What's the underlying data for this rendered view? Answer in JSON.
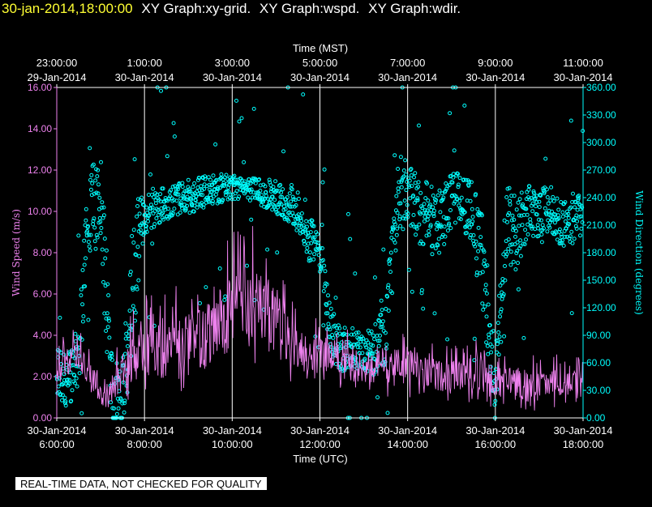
{
  "header": {
    "timestamp": "30-jan-2014,18:00:00",
    "graphs": [
      "XY Graph:xy-grid.",
      "XY Graph:wspd.",
      "XY Graph:wdir."
    ]
  },
  "footer": {
    "disclaimer": "REAL-TIME DATA, NOT CHECKED FOR QUALITY"
  },
  "colors": {
    "wspd": "#ee82ee",
    "wdir": "#00ffff",
    "axis_left": "#ee82ee",
    "axis_right": "#00ffff",
    "grid": "#ffffff",
    "header_timestamp": "#ffff33"
  },
  "chart_data": {
    "type": "line",
    "title": "",
    "top_axis": {
      "label": "Time (MST)",
      "ticks": [
        {
          "time": "23:00:00",
          "date": "29-Jan-2014"
        },
        {
          "time": "1:00:00",
          "date": "30-Jan-2014"
        },
        {
          "time": "3:00:00",
          "date": "30-Jan-2014"
        },
        {
          "time": "5:00:00",
          "date": "30-Jan-2014"
        },
        {
          "time": "7:00:00",
          "date": "30-Jan-2014"
        },
        {
          "time": "9:00:00",
          "date": "30-Jan-2014"
        },
        {
          "time": "11:00:00",
          "date": "30-Jan-2014"
        }
      ]
    },
    "bottom_axis": {
      "label": "Time (UTC)",
      "range": [
        "2014-01-30 06:00",
        "2014-01-30 18:00"
      ],
      "ticks": [
        {
          "date": "30-Jan-2014",
          "time": "6:00:00"
        },
        {
          "date": "30-Jan-2014",
          "time": "8:00:00"
        },
        {
          "date": "30-Jan-2014",
          "time": "10:00:00"
        },
        {
          "date": "30-Jan-2014",
          "time": "12:00:00"
        },
        {
          "date": "30-Jan-2014",
          "time": "14:00:00"
        },
        {
          "date": "30-Jan-2014",
          "time": "16:00:00"
        },
        {
          "date": "30-Jan-2014",
          "time": "18:00:00"
        }
      ]
    },
    "y_left": {
      "label": "Wind Speed (m/s)",
      "range": [
        0,
        16
      ],
      "ticks": [
        "0.00",
        "2.00",
        "4.00",
        "6.00",
        "8.00",
        "10.00",
        "12.00",
        "14.00",
        "16.00"
      ]
    },
    "y_right": {
      "label": "Wind Direction (degrees)",
      "range": [
        0,
        360
      ],
      "ticks": [
        "0.00",
        "30.00",
        "60.00",
        "90.00",
        "120.00",
        "150.00",
        "180.00",
        "210.00",
        "240.00",
        "270.00",
        "300.00",
        "330.00",
        "360.00"
      ]
    },
    "grid": "vertical",
    "series": [
      {
        "key": "wspd",
        "kind": "line",
        "axis": "left",
        "color": "#ee82ee",
        "x_hours_utc": [
          6.0,
          6.25,
          6.5,
          6.75,
          7.0,
          7.25,
          7.5,
          7.75,
          8.0,
          8.25,
          8.5,
          8.75,
          9.0,
          9.25,
          9.5,
          9.75,
          10.0,
          10.25,
          10.5,
          10.75,
          11.0,
          11.25,
          11.5,
          11.75,
          12.0,
          12.25,
          12.5,
          12.75,
          13.0,
          13.25,
          13.5,
          13.75,
          14.0,
          14.25,
          14.5,
          14.75,
          15.0,
          15.25,
          15.5,
          15.75,
          16.0,
          16.25,
          16.5,
          16.75,
          17.0,
          17.25,
          17.5,
          17.75,
          18.0
        ],
        "mean": [
          2.5,
          2.8,
          3.0,
          2.2,
          1.0,
          1.2,
          2.2,
          2.8,
          3.0,
          3.1,
          3.2,
          3.4,
          3.5,
          3.8,
          4.2,
          4.6,
          5.0,
          5.4,
          5.6,
          5.2,
          4.8,
          4.0,
          3.4,
          3.0,
          3.2,
          3.0,
          2.8,
          2.6,
          2.4,
          2.2,
          2.4,
          2.6,
          2.8,
          2.4,
          2.2,
          2.0,
          2.0,
          2.2,
          2.2,
          2.0,
          1.6,
          1.8,
          1.8,
          1.6,
          1.6,
          1.8,
          1.6,
          1.6,
          1.8
        ],
        "max": [
          4.0,
          4.2,
          4.4,
          3.5,
          2.2,
          2.8,
          4.2,
          5.5,
          6.0,
          6.4,
          6.8,
          6.5,
          7.0,
          7.5,
          8.2,
          8.5,
          9.0,
          9.5,
          9.3,
          8.5,
          7.5,
          6.5,
          5.5,
          4.8,
          5.0,
          4.8,
          4.4,
          4.2,
          4.0,
          3.8,
          4.0,
          4.2,
          4.5,
          4.0,
          3.8,
          3.6,
          3.5,
          3.8,
          4.0,
          3.8,
          3.0,
          3.2,
          3.6,
          3.2,
          3.0,
          3.2,
          3.0,
          2.8,
          3.2
        ],
        "min": [
          1.2,
          1.4,
          1.2,
          0.6,
          0.0,
          0.2,
          0.6,
          1.0,
          1.0,
          1.0,
          1.2,
          1.2,
          1.0,
          1.2,
          1.6,
          1.8,
          2.2,
          2.5,
          2.6,
          2.2,
          2.0,
          1.8,
          1.6,
          1.4,
          1.5,
          1.4,
          1.3,
          1.2,
          1.1,
          1.0,
          1.0,
          1.0,
          1.0,
          0.9,
          0.8,
          0.6,
          0.6,
          0.6,
          0.4,
          0.3,
          0.0,
          0.3,
          0.4,
          0.3,
          0.4,
          0.5,
          0.5,
          0.5,
          0.6
        ]
      },
      {
        "key": "wdir",
        "kind": "scatter",
        "axis": "right",
        "color": "#00ffff",
        "x_hours_utc": [
          6.0,
          6.25,
          6.5,
          6.75,
          7.0,
          7.25,
          7.5,
          7.75,
          8.0,
          8.25,
          8.5,
          8.75,
          9.0,
          9.25,
          9.5,
          9.75,
          10.0,
          10.25,
          10.5,
          10.75,
          11.0,
          11.25,
          11.5,
          11.75,
          12.0,
          12.25,
          12.5,
          12.75,
          13.0,
          13.25,
          13.5,
          13.75,
          14.0,
          14.25,
          14.5,
          14.75,
          15.0,
          15.25,
          15.5,
          15.75,
          16.0,
          16.25,
          16.5,
          16.75,
          17.0,
          17.25,
          17.5,
          17.75,
          18.0
        ],
        "center": [
          50,
          40,
          60,
          240,
          240,
          30,
          20,
          160,
          225,
          228,
          232,
          238,
          240,
          245,
          248,
          250,
          252,
          252,
          250,
          245,
          240,
          232,
          225,
          195,
          180,
          90,
          75,
          80,
          75,
          70,
          90,
          230,
          250,
          230,
          215,
          215,
          235,
          240,
          215,
          160,
          30,
          210,
          200,
          225,
          222,
          230,
          210,
          215,
          220
        ],
        "spread": [
          25,
          30,
          30,
          60,
          60,
          40,
          40,
          70,
          25,
          22,
          20,
          18,
          18,
          18,
          16,
          16,
          14,
          14,
          14,
          16,
          18,
          20,
          22,
          25,
          25,
          30,
          25,
          25,
          25,
          25,
          40,
          40,
          35,
          40,
          40,
          35,
          30,
          30,
          40,
          60,
          40,
          45,
          40,
          30,
          25,
          25,
          25,
          25,
          25
        ]
      }
    ]
  }
}
